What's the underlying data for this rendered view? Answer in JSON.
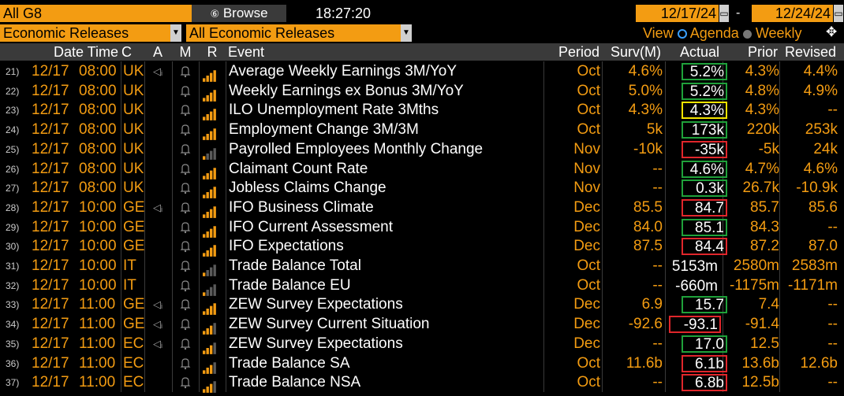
{
  "toolbar": {
    "scope": "All G8",
    "browse_label": "Browse",
    "browse_icon": "browse-icon",
    "clock": "18:27:20",
    "start_date": "12/17/24",
    "end_date": "12/24/24",
    "category": "Economic Releases",
    "subcategory": "All Economic Releases",
    "view_label": "View",
    "agenda_label": "Agenda",
    "weekly_label": "Weekly",
    "accent_color": "#f39c12"
  },
  "columns": {
    "date_time": "Date Time",
    "country": "C",
    "alert": "A",
    "memo": "M",
    "relevance": "R",
    "event": "Event",
    "period": "Period",
    "survey": "Surv(M)",
    "actual": "Actual",
    "prior": "Prior",
    "revised": "Revised"
  },
  "rows": [
    {
      "num": "21)",
      "date": "12/17",
      "time": "08:00",
      "c": "UK",
      "alert": true,
      "event": "Average Weekly Earnings 3M/YoY",
      "period": "Oct",
      "surv": "4.6%",
      "actual": "5.2%",
      "box": "green",
      "prior": "4.3%",
      "revised": "4.4%",
      "bars": 4
    },
    {
      "num": "22)",
      "date": "12/17",
      "time": "08:00",
      "c": "UK",
      "alert": false,
      "event": "Weekly Earnings ex Bonus 3M/YoY",
      "period": "Oct",
      "surv": "5.0%",
      "actual": "5.2%",
      "box": "green",
      "prior": "4.8%",
      "revised": "4.9%",
      "bars": 4
    },
    {
      "num": "23)",
      "date": "12/17",
      "time": "08:00",
      "c": "UK",
      "alert": false,
      "event": "ILO Unemployment Rate 3Mths",
      "period": "Oct",
      "surv": "4.3%",
      "actual": "4.3%",
      "box": "yellow",
      "prior": "4.3%",
      "revised": "--",
      "bars": 4
    },
    {
      "num": "24)",
      "date": "12/17",
      "time": "08:00",
      "c": "UK",
      "alert": false,
      "event": "Employment Change 3M/3M",
      "period": "Oct",
      "surv": "5k",
      "actual": "173k",
      "box": "green",
      "prior": "220k",
      "revised": "253k",
      "bars": 4
    },
    {
      "num": "25)",
      "date": "12/17",
      "time": "08:00",
      "c": "UK",
      "alert": false,
      "event": "Payrolled Employees Monthly Change",
      "period": "Nov",
      "surv": "-10k",
      "actual": "-35k",
      "box": "red",
      "prior": "-5k",
      "revised": "24k",
      "bars": 1
    },
    {
      "num": "26)",
      "date": "12/17",
      "time": "08:00",
      "c": "UK",
      "alert": false,
      "event": "Claimant Count Rate",
      "period": "Nov",
      "surv": "--",
      "actual": "4.6%",
      "box": "green",
      "prior": "4.7%",
      "revised": "4.6%",
      "bars": 4
    },
    {
      "num": "27)",
      "date": "12/17",
      "time": "08:00",
      "c": "UK",
      "alert": false,
      "event": "Jobless Claims Change",
      "period": "Nov",
      "surv": "--",
      "actual": "0.3k",
      "box": "green",
      "prior": "26.7k",
      "revised": "-10.9k",
      "bars": 4
    },
    {
      "num": "28)",
      "date": "12/17",
      "time": "10:00",
      "c": "GE",
      "alert": true,
      "event": "IFO Business Climate",
      "period": "Dec",
      "surv": "85.5",
      "actual": "84.7",
      "box": "red",
      "prior": "85.7",
      "revised": "85.6",
      "bars": 4
    },
    {
      "num": "29)",
      "date": "12/17",
      "time": "10:00",
      "c": "GE",
      "alert": false,
      "event": "IFO Current Assessment",
      "period": "Dec",
      "surv": "84.0",
      "actual": "85.1",
      "box": "green",
      "prior": "84.3",
      "revised": "--",
      "bars": 4
    },
    {
      "num": "30)",
      "date": "12/17",
      "time": "10:00",
      "c": "GE",
      "alert": false,
      "event": "IFO Expectations",
      "period": "Dec",
      "surv": "87.5",
      "actual": "84.4",
      "box": "red",
      "prior": "87.2",
      "revised": "87.0",
      "bars": 4
    },
    {
      "num": "31)",
      "date": "12/17",
      "time": "10:00",
      "c": "IT",
      "alert": false,
      "event": "Trade Balance Total",
      "period": "Oct",
      "surv": "--",
      "actual": "5153m",
      "box": "none",
      "prior": "2580m",
      "revised": "2583m",
      "bars": 1
    },
    {
      "num": "32)",
      "date": "12/17",
      "time": "10:00",
      "c": "IT",
      "alert": false,
      "event": "Trade Balance EU",
      "period": "Oct",
      "surv": "--",
      "actual": "-660m",
      "box": "none",
      "prior": "-1175m",
      "revised": "-1171m",
      "bars": 1
    },
    {
      "num": "33)",
      "date": "12/17",
      "time": "11:00",
      "c": "GE",
      "alert": true,
      "event": "ZEW Survey Expectations",
      "period": "Dec",
      "surv": "6.9",
      "actual": "15.7",
      "box": "green",
      "prior": "7.4",
      "revised": "--",
      "bars": 4
    },
    {
      "num": "34)",
      "date": "12/17",
      "time": "11:00",
      "c": "GE",
      "alert": true,
      "event": "ZEW Survey Current Situation",
      "period": "Dec",
      "surv": "-92.6",
      "actual": "-93.1",
      "box": "red",
      "prior": "-91.4",
      "revised": "--",
      "bars": 3
    },
    {
      "num": "35)",
      "date": "12/17",
      "time": "11:00",
      "c": "EC",
      "alert": true,
      "event": "ZEW Survey Expectations",
      "period": "Dec",
      "surv": "--",
      "actual": "17.0",
      "box": "green",
      "prior": "12.5",
      "revised": "--",
      "bars": 3
    },
    {
      "num": "36)",
      "date": "12/17",
      "time": "11:00",
      "c": "EC",
      "alert": false,
      "event": "Trade Balance SA",
      "period": "Oct",
      "surv": "11.6b",
      "actual": "6.1b",
      "box": "red",
      "prior": "13.6b",
      "revised": "12.6b",
      "bars": 3
    },
    {
      "num": "37)",
      "date": "12/17",
      "time": "11:00",
      "c": "EC",
      "alert": false,
      "event": "Trade Balance NSA",
      "period": "Oct",
      "surv": "--",
      "actual": "6.8b",
      "box": "red",
      "prior": "12.5b",
      "revised": "--",
      "bars": 3
    }
  ],
  "box_colors": {
    "green": "#1fa13a",
    "red": "#e0262b",
    "yellow": "#f5e400",
    "none": "transparent"
  },
  "icons": {
    "alert": "speaker-icon",
    "memo": "bell-icon",
    "relevance": "signal-bars-icon",
    "view_options": "move-icon"
  }
}
